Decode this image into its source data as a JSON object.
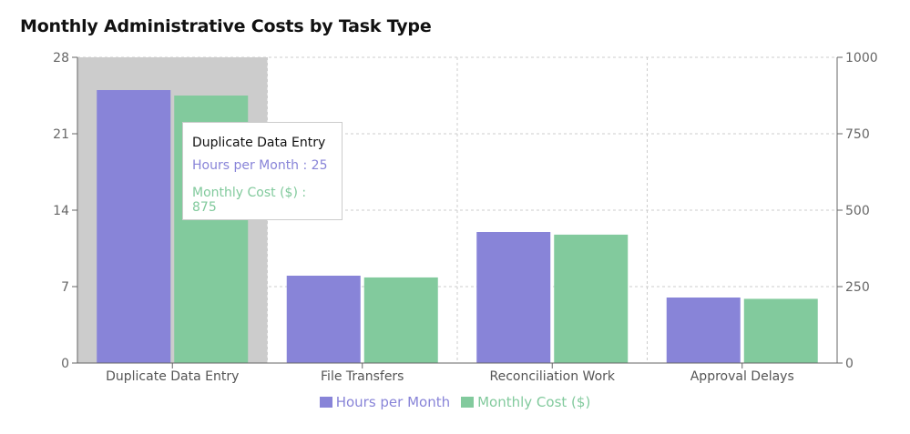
{
  "chart_data": {
    "type": "bar",
    "title": "Monthly Administrative Costs by Task Type",
    "categories": [
      "Duplicate Data Entry",
      "File Transfers",
      "Reconciliation Work",
      "Approval Delays"
    ],
    "series": [
      {
        "name": "Hours per Month",
        "axis": "left",
        "color": "#8884d8",
        "values": [
          25,
          8,
          12,
          6
        ]
      },
      {
        "name": "Monthly Cost ($)",
        "axis": "right",
        "color": "#82ca9d",
        "values": [
          875,
          280,
          420,
          210
        ]
      }
    ],
    "y_left": {
      "ticks": [
        0,
        7,
        14,
        21,
        28
      ],
      "ylim": [
        0,
        28
      ]
    },
    "y_right": {
      "ticks": [
        0,
        250,
        500,
        750,
        1000
      ],
      "ylim": [
        0,
        1000
      ]
    },
    "grid": true,
    "legend": "bottom-center",
    "highlighted_category": "Duplicate Data Entry"
  },
  "tooltip": {
    "title": "Duplicate Data Entry",
    "rows": [
      {
        "label": "Hours per Month : 25",
        "color": "#8884d8"
      },
      {
        "label": "Monthly Cost ($) : 875",
        "color": "#82ca9d"
      }
    ]
  }
}
